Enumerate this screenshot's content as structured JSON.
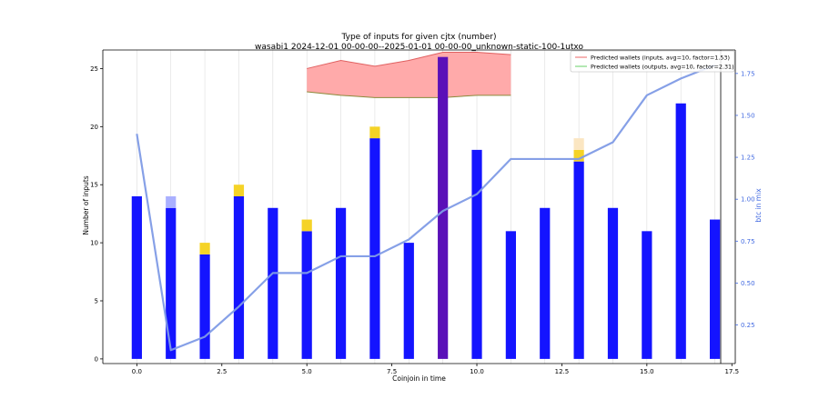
{
  "chart_data": {
    "type": "bar",
    "title": "Type of inputs for given cjtx (number)",
    "subtitle": "wasabi1 2024-12-01 00-00-00--2025-01-01 00-00-00_unknown-static-100-1utxo",
    "xlabel": "Coinjoin in time",
    "ylabel": "Number of inputs",
    "y2label": "btc in mix",
    "xlim": [
      -1,
      17.6
    ],
    "ylim": [
      -0.4,
      26.6
    ],
    "y2lim": [
      0.02,
      1.89
    ],
    "xticks": [
      0.0,
      2.5,
      5.0,
      7.5,
      10.0,
      12.5,
      15.0,
      17.5
    ],
    "xtick_labels": [
      "0.0",
      "2.5",
      "5.0",
      "7.5",
      "10.0",
      "12.5",
      "15.0",
      "17.5"
    ],
    "yticks": [
      0,
      5,
      10,
      15,
      20,
      25
    ],
    "y2ticks": [
      0.25,
      0.5,
      0.75,
      1.0,
      1.25,
      1.5,
      1.75
    ],
    "y2tick_labels": [
      "0.25",
      "0.50",
      "0.75",
      "1.00",
      "1.25",
      "1.50",
      "1.75"
    ],
    "x": [
      0,
      1,
      2,
      3,
      4,
      5,
      6,
      7,
      8,
      9,
      10,
      11,
      12,
      13,
      14,
      15,
      16,
      17
    ],
    "stacks": [
      {
        "color": "#1414ff",
        "values": [
          14,
          13,
          9,
          14,
          13,
          11,
          13,
          19,
          10,
          26,
          18,
          11,
          13,
          17,
          13,
          11,
          22,
          12
        ]
      },
      {
        "color": "#aab0ff",
        "values": [
          0,
          1,
          0,
          0,
          0,
          0,
          0,
          0,
          0,
          0,
          0,
          0,
          0,
          0,
          0,
          0,
          0,
          0
        ]
      },
      {
        "color": "#f5d327",
        "values": [
          0,
          0,
          1,
          1,
          0,
          1,
          0,
          1,
          0,
          0,
          0,
          0,
          0,
          1,
          0,
          0,
          0,
          0
        ]
      },
      {
        "color": "#fbe6c2",
        "values": [
          0,
          0,
          0,
          0,
          0,
          0,
          0,
          0,
          0,
          0,
          0,
          0,
          0,
          1,
          0,
          0,
          0,
          0
        ]
      }
    ],
    "highlight": {
      "x": 9,
      "color": "#5a10b8"
    },
    "secondary_line": {
      "color": "#7f9be6",
      "values": [
        1.39,
        0.1,
        0.18,
        0.36,
        0.56,
        0.56,
        0.66,
        0.66,
        0.76,
        0.93,
        1.03,
        1.24,
        1.24,
        1.24,
        1.34,
        1.62,
        1.72,
        1.8
      ]
    },
    "band": {
      "x": [
        5,
        6,
        7,
        8,
        9,
        10,
        11
      ],
      "upper": [
        25.0,
        25.7,
        25.2,
        25.7,
        26.4,
        26.4,
        26.2
      ],
      "lower": [
        23.0,
        22.7,
        22.5,
        22.5,
        22.5,
        22.7,
        22.7
      ],
      "fill": "#ffaaaa",
      "upper_edge": "#e06060",
      "lower_edge": "#8a8a3a"
    },
    "legend_position": "top-right",
    "legend": [
      {
        "label": "Predicted wallets (inputs, avg=10, factor=1.53)",
        "color": "#f08080"
      },
      {
        "label": "Predicted wallets (outputs, avg=10, factor=2.31)",
        "color": "#80d880"
      }
    ],
    "colors": {
      "axis": "#000000",
      "grid": "#dddddd",
      "y2_axis": "#4169e1"
    },
    "grid": true
  }
}
